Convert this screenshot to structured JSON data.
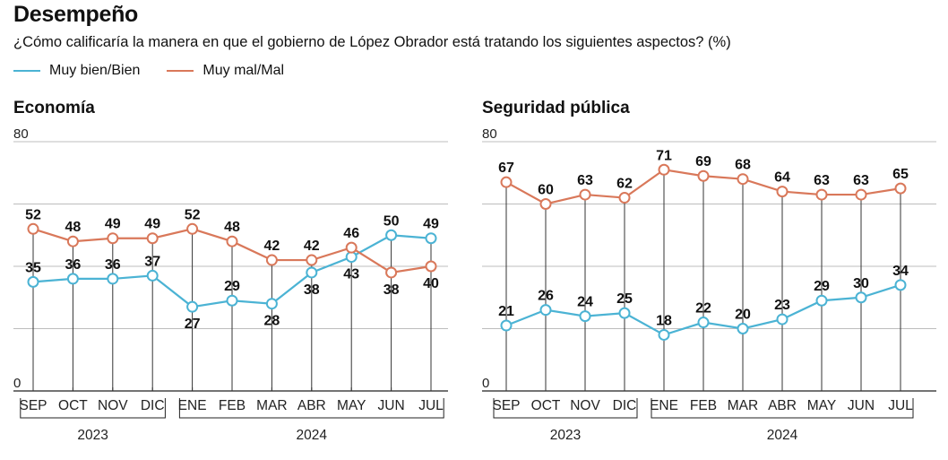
{
  "header": {
    "title": "Desempeño",
    "subtitle": "¿Cómo calificaría la manera en que el gobierno de López Obrador está tratando los siguientes aspectos? (%)"
  },
  "legend": [
    {
      "label": "Muy bien/Bien",
      "color": "#4BB3D4"
    },
    {
      "label": "Muy mal/Mal",
      "color": "#D9785A"
    }
  ],
  "colors": {
    "positive": "#4BB3D4",
    "negative": "#D9785A",
    "grid": "#bdbdbd",
    "axis": "#222222"
  },
  "chart_data": [
    {
      "type": "line",
      "title": "Economía",
      "categories": [
        "SEP",
        "OCT",
        "NOV",
        "DIC",
        "ENE",
        "FEB",
        "MAR",
        "ABR",
        "MAY",
        "JUN",
        "JUL"
      ],
      "year_groups": [
        {
          "label": "2023",
          "start": 0,
          "end": 3
        },
        {
          "label": "2024",
          "start": 4,
          "end": 10
        }
      ],
      "ylim": [
        0,
        80
      ],
      "yticks": [
        0,
        80
      ],
      "grid": true,
      "series": [
        {
          "name": "Muy bien/Bien",
          "values": [
            35,
            36,
            36,
            37,
            27,
            29,
            28,
            38,
            43,
            50,
            49
          ]
        },
        {
          "name": "Muy mal/Mal",
          "values": [
            52,
            48,
            49,
            49,
            52,
            48,
            42,
            42,
            46,
            38,
            40
          ]
        }
      ],
      "label_pos": {
        "Muy bien/Bien": [
          "above",
          "above",
          "above",
          "above",
          "below",
          "above",
          "below",
          "below",
          "below",
          "above",
          "above"
        ],
        "Muy mal/Mal": [
          "above",
          "above",
          "above",
          "above",
          "above",
          "above",
          "above",
          "above",
          "above",
          "below",
          "below"
        ]
      }
    },
    {
      "type": "line",
      "title": "Seguridad pública",
      "categories": [
        "SEP",
        "OCT",
        "NOV",
        "DIC",
        "ENE",
        "FEB",
        "MAR",
        "ABR",
        "MAY",
        "JUN",
        "JUL"
      ],
      "year_groups": [
        {
          "label": "2023",
          "start": 0,
          "end": 3
        },
        {
          "label": "2024",
          "start": 4,
          "end": 10
        }
      ],
      "ylim": [
        0,
        80
      ],
      "yticks": [
        0,
        80
      ],
      "grid": true,
      "series": [
        {
          "name": "Muy bien/Bien",
          "values": [
            21,
            26,
            24,
            25,
            18,
            22,
            20,
            23,
            29,
            30,
            34
          ]
        },
        {
          "name": "Muy mal/Mal",
          "values": [
            67,
            60,
            63,
            62,
            71,
            69,
            68,
            64,
            63,
            63,
            65
          ]
        }
      ],
      "label_pos": {
        "Muy bien/Bien": [
          "above",
          "above",
          "above",
          "above",
          "above",
          "above",
          "above",
          "above",
          "above",
          "above",
          "above"
        ],
        "Muy mal/Mal": [
          "above",
          "above",
          "above",
          "above",
          "above",
          "above",
          "above",
          "above",
          "above",
          "above",
          "above"
        ]
      }
    }
  ]
}
